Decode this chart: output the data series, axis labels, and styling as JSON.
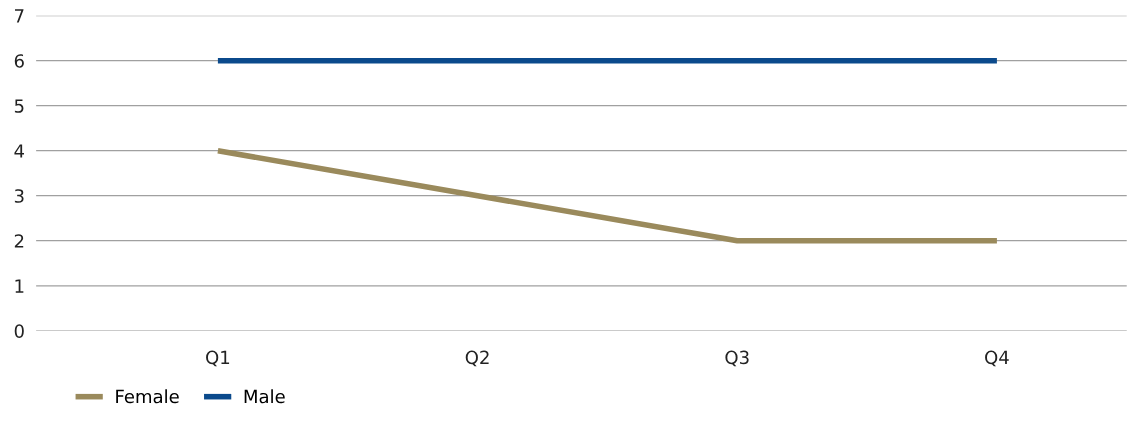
{
  "chart_data": {
    "type": "line",
    "categories": [
      "Q1",
      "Q2",
      "Q3",
      "Q4"
    ],
    "series": [
      {
        "name": "Female",
        "color": "#9a8a5c",
        "values": [
          4,
          3,
          2,
          2
        ]
      },
      {
        "name": "Male",
        "color": "#0b4a8c",
        "values": [
          6,
          6,
          6,
          6
        ]
      }
    ],
    "ylim": [
      0,
      7
    ],
    "yticks": [
      0,
      1,
      2,
      3,
      4,
      5,
      6,
      7
    ],
    "grid": "y",
    "legend": "bottom left",
    "marker": "none",
    "line_style": "solid"
  }
}
